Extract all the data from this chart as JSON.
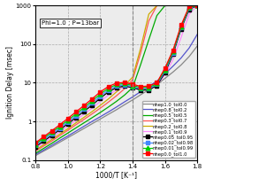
{
  "xlabel": "1000/T [K⁻¹]",
  "ylabel": "Ignition Delay [msec]",
  "xlim": [
    0.8,
    1.8
  ],
  "ylim_log": [
    0.1,
    1000
  ],
  "annotation_text": "Phi=1.0 ; P=13bar",
  "series": [
    {
      "label": "nhep1.0_tol0.0",
      "color": "#888888",
      "marker": null,
      "lw": 0.9,
      "x": [
        0.8,
        0.85,
        0.9,
        0.95,
        1.0,
        1.05,
        1.1,
        1.15,
        1.2,
        1.25,
        1.3,
        1.35,
        1.4,
        1.45,
        1.5,
        1.55,
        1.6,
        1.65,
        1.7,
        1.75,
        1.8
      ],
      "y": [
        0.13,
        0.17,
        0.22,
        0.29,
        0.38,
        0.5,
        0.66,
        0.87,
        1.15,
        1.52,
        2.0,
        2.7,
        3.6,
        4.9,
        6.6,
        9.0,
        13,
        19,
        29,
        48,
        90
      ]
    },
    {
      "label": "nhep0.8_tol0.2",
      "color": "#5555cc",
      "marker": null,
      "lw": 0.9,
      "x": [
        0.8,
        0.85,
        0.9,
        0.95,
        1.0,
        1.05,
        1.1,
        1.15,
        1.2,
        1.25,
        1.3,
        1.35,
        1.4,
        1.45,
        1.5,
        1.55,
        1.6,
        1.65,
        1.7,
        1.75,
        1.8
      ],
      "y": [
        0.14,
        0.18,
        0.24,
        0.32,
        0.42,
        0.56,
        0.75,
        1.0,
        1.32,
        1.75,
        2.35,
        3.2,
        4.3,
        5.9,
        8.1,
        11,
        17,
        27,
        44,
        80,
        180
      ]
    },
    {
      "label": "nhep0.5_tol0.5",
      "color": "#00aa00",
      "marker": null,
      "lw": 0.9,
      "x": [
        0.8,
        0.85,
        0.9,
        0.95,
        1.0,
        1.05,
        1.1,
        1.15,
        1.2,
        1.25,
        1.3,
        1.35,
        1.4,
        1.45,
        1.5,
        1.55,
        1.6,
        1.65,
        1.7,
        1.75,
        1.8
      ],
      "y": [
        0.15,
        0.2,
        0.27,
        0.37,
        0.5,
        0.68,
        0.92,
        1.25,
        1.7,
        2.35,
        3.3,
        4.8,
        7.5,
        30,
        130,
        550,
        1000,
        1000,
        1000,
        1000,
        1000
      ]
    },
    {
      "label": "nhep0.3_tol0.7",
      "color": "#ff5555",
      "marker": null,
      "lw": 0.9,
      "x": [
        0.8,
        0.85,
        0.9,
        0.95,
        1.0,
        1.05,
        1.1,
        1.15,
        1.2,
        1.25,
        1.3,
        1.35,
        1.4,
        1.45,
        1.5,
        1.55,
        1.6,
        1.65,
        1.7,
        1.75,
        1.8
      ],
      "y": [
        0.17,
        0.23,
        0.31,
        0.43,
        0.59,
        0.82,
        1.13,
        1.57,
        2.2,
        3.15,
        4.6,
        7.0,
        12,
        60,
        400,
        1000,
        1000,
        1000,
        1000,
        1000,
        1000
      ]
    },
    {
      "label": "nhep0.2_tol0.8",
      "color": "#ccaa00",
      "marker": null,
      "lw": 0.9,
      "x": [
        0.8,
        0.85,
        0.9,
        0.95,
        1.0,
        1.05,
        1.1,
        1.15,
        1.2,
        1.25,
        1.3,
        1.35,
        1.4,
        1.45,
        1.5,
        1.55,
        1.6,
        1.65,
        1.7,
        1.75,
        1.8
      ],
      "y": [
        0.18,
        0.25,
        0.34,
        0.47,
        0.65,
        0.92,
        1.28,
        1.8,
        2.6,
        3.8,
        5.8,
        8.5,
        14,
        80,
        600,
        1000,
        1000,
        1000,
        1000,
        1000,
        1000
      ]
    },
    {
      "label": "nhep0.1_tol0.9",
      "color": "#ff88ff",
      "marker": null,
      "lw": 0.9,
      "x": [
        0.8,
        0.85,
        0.9,
        0.95,
        1.0,
        1.05,
        1.1,
        1.15,
        1.2,
        1.25,
        1.3,
        1.35,
        1.4,
        1.45,
        1.5,
        1.55,
        1.6,
        1.65,
        1.7,
        1.75,
        1.8
      ],
      "y": [
        0.2,
        0.28,
        0.38,
        0.54,
        0.76,
        1.08,
        1.55,
        2.2,
        3.3,
        4.8,
        6.5,
        7.8,
        7.5,
        6.8,
        7.2,
        9,
        16,
        40,
        150,
        600,
        1000
      ]
    },
    {
      "label": "nhep0.05_tol0.95",
      "color": "#000000",
      "marker": "s",
      "markersize": 2.5,
      "lw": 0.9,
      "x": [
        0.8,
        0.85,
        0.9,
        0.95,
        1.0,
        1.05,
        1.1,
        1.15,
        1.2,
        1.25,
        1.3,
        1.35,
        1.4,
        1.45,
        1.5,
        1.55,
        1.6,
        1.65,
        1.7,
        1.75,
        1.8
      ],
      "y": [
        0.22,
        0.31,
        0.43,
        0.61,
        0.87,
        1.26,
        1.82,
        2.65,
        4.0,
        5.8,
        7.5,
        8.2,
        7.5,
        6.5,
        6.5,
        8.5,
        18,
        55,
        250,
        800,
        1000
      ]
    },
    {
      "label": "nhep0.02_tol0.98",
      "color": "#4488ff",
      "marker": "s",
      "markersize": 2.5,
      "lw": 0.9,
      "x": [
        0.8,
        0.85,
        0.9,
        0.95,
        1.0,
        1.05,
        1.1,
        1.15,
        1.2,
        1.25,
        1.3,
        1.35,
        1.4,
        1.45,
        1.5,
        1.55,
        1.6,
        1.65,
        1.7,
        1.75,
        1.8
      ],
      "y": [
        0.24,
        0.34,
        0.47,
        0.67,
        0.96,
        1.4,
        2.05,
        3.0,
        4.5,
        6.5,
        8.2,
        8.8,
        8.0,
        7.0,
        7.0,
        9.0,
        20,
        60,
        270,
        850,
        1000
      ]
    },
    {
      "label": "nhep0.01_tol0.99",
      "color": "#00cc00",
      "marker": "^",
      "markersize": 3.5,
      "lw": 0.9,
      "x": [
        0.8,
        0.85,
        0.9,
        0.95,
        1.0,
        1.05,
        1.1,
        1.15,
        1.2,
        1.25,
        1.3,
        1.35,
        1.4,
        1.45,
        1.5,
        1.55,
        1.6,
        1.65,
        1.7,
        1.75,
        1.8
      ],
      "y": [
        0.26,
        0.37,
        0.52,
        0.74,
        1.07,
        1.57,
        2.3,
        3.4,
        5.1,
        7.2,
        9.0,
        9.5,
        8.5,
        7.5,
        7.5,
        9.5,
        22,
        65,
        290,
        900,
        1000
      ]
    },
    {
      "label": "nhep0.0_tol1.0",
      "color": "#ff0000",
      "marker": "s",
      "markersize": 2.5,
      "lw": 0.9,
      "x": [
        0.8,
        0.85,
        0.9,
        0.95,
        1.0,
        1.05,
        1.1,
        1.15,
        1.2,
        1.25,
        1.3,
        1.35,
        1.4,
        1.45,
        1.5,
        1.55,
        1.6,
        1.65,
        1.7,
        1.75,
        1.8
      ],
      "y": [
        0.28,
        0.4,
        0.57,
        0.82,
        1.2,
        1.76,
        2.6,
        3.85,
        5.8,
        8.0,
        9.8,
        10.2,
        9.2,
        8.0,
        8.2,
        10,
        24,
        70,
        310,
        950,
        1000
      ]
    }
  ],
  "bg_color": "#ececec"
}
